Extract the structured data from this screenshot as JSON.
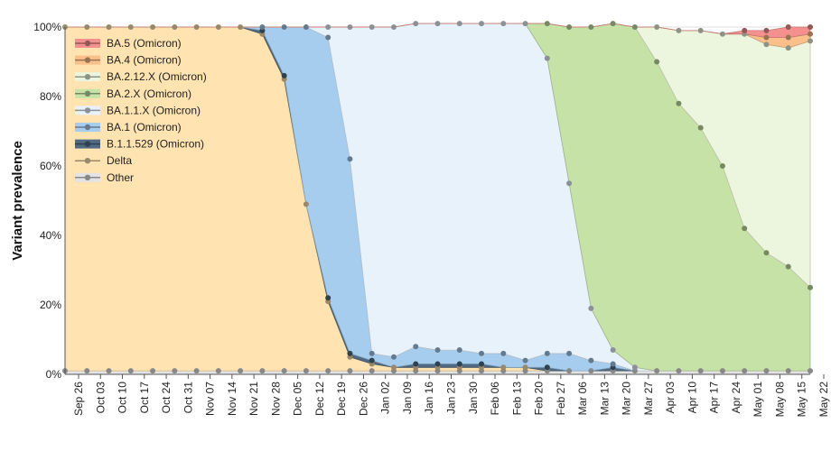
{
  "chart_data": {
    "type": "area",
    "stacking": "percent",
    "ylabel": "Variant prevalence",
    "xlabel": "",
    "ylim": [
      0,
      100
    ],
    "yticks": [
      "0%",
      "20%",
      "40%",
      "60%",
      "80%",
      "100%"
    ],
    "grid": true,
    "legend_position": "top-left",
    "x": [
      "Sep 26",
      "Oct 03",
      "Oct 10",
      "Oct 17",
      "Oct 24",
      "Oct 31",
      "Nov 07",
      "Nov 14",
      "Nov 21",
      "Nov 28",
      "Dec 05",
      "Dec 12",
      "Dec 19",
      "Dec 26",
      "Jan 02",
      "Jan 09",
      "Jan 16",
      "Jan 23",
      "Jan 30",
      "Feb 06",
      "Feb 13",
      "Feb 20",
      "Feb 27",
      "Mar 06",
      "Mar 13",
      "Mar 20",
      "Mar 27",
      "Apr 03",
      "Apr 10",
      "Apr 17",
      "Apr 24",
      "May 01",
      "May 08",
      "May 15",
      "May 22"
    ],
    "series": [
      {
        "name": "Other",
        "color": "#e3e3e3",
        "values": [
          1,
          1,
          1,
          1,
          1,
          1,
          1,
          1,
          1,
          1,
          1,
          1,
          1,
          1,
          1,
          1,
          1,
          1,
          1,
          1,
          1,
          1,
          1,
          1,
          1,
          1,
          1,
          1,
          1,
          1,
          1,
          1,
          1,
          1,
          1
        ]
      },
      {
        "name": "Delta",
        "color": "#ffe3b0",
        "values": [
          99,
          99,
          99,
          99,
          99,
          99,
          99,
          99,
          99,
          97,
          84,
          48,
          20,
          4,
          2,
          1,
          1,
          1,
          1,
          1,
          1,
          1,
          0,
          0,
          0,
          0,
          0,
          0,
          0,
          0,
          0,
          0,
          0,
          0,
          0
        ]
      },
      {
        "name": "B.1.1.529 (Omicron)",
        "color": "#4f6a82",
        "values": [
          0,
          0,
          0,
          0,
          0,
          0,
          0,
          0,
          0,
          1,
          1,
          0,
          1,
          1,
          1,
          0,
          1,
          1,
          1,
          1,
          0,
          0,
          1,
          0,
          0,
          1,
          0,
          0,
          0,
          0,
          0,
          0,
          0,
          0,
          0
        ]
      },
      {
        "name": "BA.1 (Omicron)",
        "color": "#a6cdee",
        "values": [
          0,
          0,
          0,
          0,
          0,
          0,
          0,
          0,
          0,
          1,
          14,
          51,
          75,
          56,
          2,
          3,
          5,
          4,
          4,
          3,
          4,
          2,
          4,
          5,
          3,
          1,
          0,
          0,
          0,
          0,
          0,
          0,
          0,
          0,
          0
        ]
      },
      {
        "name": "BA.1.1.X (Omicron)",
        "color": "#e8f2fb",
        "values": [
          0,
          0,
          0,
          0,
          0,
          0,
          0,
          0,
          0,
          0,
          0,
          0,
          3,
          38,
          94,
          95,
          93,
          94,
          94,
          95,
          95,
          97,
          85,
          49,
          15,
          4,
          1,
          0,
          0,
          0,
          0,
          0,
          0,
          0,
          0
        ]
      },
      {
        "name": "BA.2.X (Omicron)",
        "color": "#c6e2a6",
        "values": [
          0,
          0,
          0,
          0,
          0,
          0,
          0,
          0,
          0,
          0,
          0,
          0,
          0,
          0,
          0,
          0,
          0,
          0,
          0,
          0,
          0,
          0,
          10,
          45,
          81,
          94,
          98,
          89,
          77,
          70,
          59,
          41,
          34,
          30,
          24
        ]
      },
      {
        "name": "BA.2.12.X (Omicron)",
        "color": "#ecf5de",
        "values": [
          0,
          0,
          0,
          0,
          0,
          0,
          0,
          0,
          0,
          0,
          0,
          0,
          0,
          0,
          0,
          0,
          0,
          0,
          0,
          0,
          0,
          0,
          0,
          0,
          0,
          0,
          0,
          10,
          21,
          28,
          38,
          56,
          60,
          63,
          71
        ]
      },
      {
        "name": "BA.4 (Omicron)",
        "color": "#fbc08a",
        "values": [
          0,
          0,
          0,
          0,
          0,
          0,
          0,
          0,
          0,
          0,
          0,
          0,
          0,
          0,
          0,
          0,
          0,
          0,
          0,
          0,
          0,
          0,
          0,
          0,
          0,
          0,
          0,
          0,
          0,
          0,
          0,
          0,
          2,
          3,
          2
        ]
      },
      {
        "name": "BA.5 (Omicron)",
        "color": "#f4918f",
        "values": [
          0,
          0,
          0,
          0,
          0,
          0,
          0,
          0,
          0,
          0,
          0,
          0,
          0,
          0,
          0,
          0,
          0,
          0,
          0,
          0,
          0,
          0,
          0,
          0,
          0,
          0,
          0,
          0,
          0,
          0,
          0,
          1,
          2,
          3,
          2
        ]
      }
    ]
  }
}
